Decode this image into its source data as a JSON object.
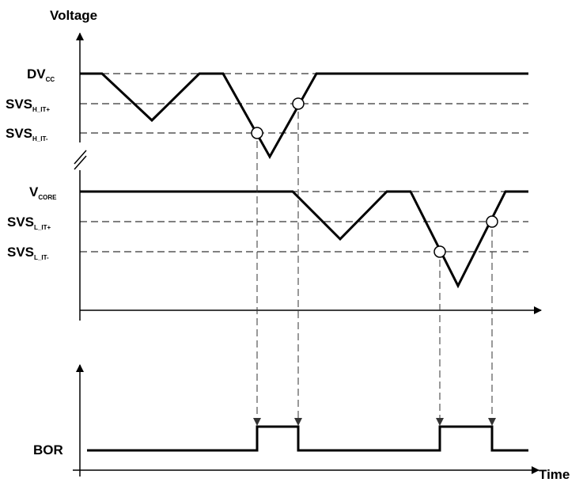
{
  "axes": {
    "y_label": "Voltage",
    "x_label": "Time"
  },
  "levels": {
    "dvcc": {
      "main": "DV",
      "sub": "CC"
    },
    "svs_h_it_plus": {
      "main": "SVS",
      "sub": "H_IT+"
    },
    "svs_h_it_minus": {
      "main": "SVS",
      "sub": "H_IT-"
    },
    "vcore": {
      "main": "V",
      "sub": "CORE"
    },
    "svs_l_it_plus": {
      "main": "SVS",
      "sub": "L_IT+"
    },
    "svs_l_it_minus": {
      "main": "SVS",
      "sub": "L_IT-"
    }
  },
  "signals": {
    "bor": "BOR"
  },
  "colors": {
    "line": "#000000",
    "dashed": "#000000",
    "arrow_fill": "#333333",
    "marker_fill": "#ffffff"
  }
}
